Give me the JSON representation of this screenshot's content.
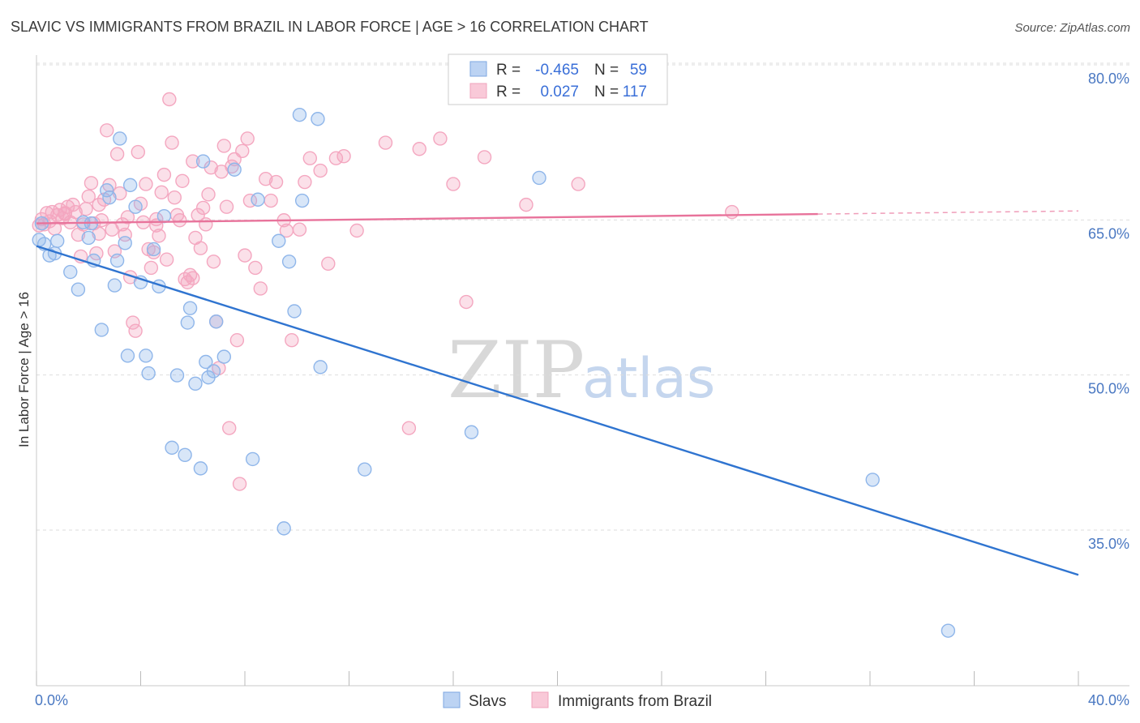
{
  "chart_data": {
    "type": "scatter",
    "title": "SLAVIC VS IMMIGRANTS FROM BRAZIL IN LABOR FORCE | AGE > 16 CORRELATION CHART",
    "source": "Source: ZipAtlas.com",
    "xlabel": "",
    "ylabel": "In Labor Force | Age > 16",
    "xlim": [
      0,
      40
    ],
    "ylim": [
      20,
      83
    ],
    "x_tick_labels": [
      {
        "value": 0,
        "label": "0.0%"
      },
      {
        "value": 40,
        "label": "40.0%"
      }
    ],
    "y_tick_labels": [
      {
        "value": 80,
        "label": "80.0%"
      },
      {
        "value": 65,
        "label": "65.0%"
      },
      {
        "value": 50,
        "label": "50.0%"
      },
      {
        "value": 35,
        "label": "35.0%"
      }
    ],
    "legend": {
      "r_label": "R =",
      "n_label": "N =",
      "entries": [
        {
          "r": "-0.465",
          "n": "59"
        },
        {
          "r": "0.027",
          "n": "117"
        }
      ]
    },
    "watermark": {
      "zip": "ZIP",
      "atlas": "atlas"
    },
    "series": [
      {
        "name": "Slavs",
        "color": "#8fb6ea",
        "line_color": "#2f74d0",
        "trend": {
          "x": [
            0,
            40
          ],
          "y": [
            63.8,
            32.0
          ]
        },
        "points": [
          [
            0.1,
            64.4
          ],
          [
            0.2,
            66.0
          ],
          [
            0.3,
            64.0
          ],
          [
            0.5,
            62.9
          ],
          [
            0.7,
            63.1
          ],
          [
            0.8,
            64.3
          ],
          [
            1.3,
            61.3
          ],
          [
            1.6,
            59.6
          ],
          [
            1.8,
            66.1
          ],
          [
            2.0,
            64.6
          ],
          [
            2.1,
            66.0
          ],
          [
            2.2,
            62.4
          ],
          [
            2.5,
            55.7
          ],
          [
            2.7,
            69.2
          ],
          [
            2.8,
            68.5
          ],
          [
            3.0,
            60.0
          ],
          [
            3.1,
            62.4
          ],
          [
            3.2,
            74.2
          ],
          [
            3.4,
            64.1
          ],
          [
            3.5,
            53.2
          ],
          [
            3.6,
            69.7
          ],
          [
            3.8,
            67.6
          ],
          [
            4.0,
            60.3
          ],
          [
            4.2,
            53.2
          ],
          [
            4.3,
            51.5
          ],
          [
            4.5,
            63.5
          ],
          [
            4.7,
            59.9
          ],
          [
            4.9,
            66.7
          ],
          [
            5.2,
            44.3
          ],
          [
            5.4,
            51.3
          ],
          [
            5.7,
            43.6
          ],
          [
            5.8,
            56.4
          ],
          [
            5.9,
            57.8
          ],
          [
            6.1,
            50.5
          ],
          [
            6.3,
            42.3
          ],
          [
            6.4,
            72.0
          ],
          [
            6.5,
            52.6
          ],
          [
            6.6,
            51.1
          ],
          [
            6.8,
            51.7
          ],
          [
            6.9,
            56.5
          ],
          [
            7.2,
            53.1
          ],
          [
            7.6,
            71.2
          ],
          [
            8.3,
            43.2
          ],
          [
            8.5,
            68.3
          ],
          [
            9.3,
            64.3
          ],
          [
            9.5,
            36.5
          ],
          [
            9.7,
            62.3
          ],
          [
            9.9,
            57.5
          ],
          [
            10.1,
            76.5
          ],
          [
            10.2,
            68.2
          ],
          [
            10.8,
            76.1
          ],
          [
            10.9,
            52.1
          ],
          [
            12.6,
            42.2
          ],
          [
            16.7,
            45.8
          ],
          [
            19.3,
            70.4
          ],
          [
            32.1,
            41.2
          ],
          [
            35.0,
            26.6
          ]
        ]
      },
      {
        "name": "Immigrants from Brazil",
        "color": "#f4a7c0",
        "line_color": "#e8739b",
        "trend": {
          "x": [
            0,
            30
          ],
          "y": [
            66.0,
            66.9
          ]
        },
        "trend_dashed": {
          "x": [
            30,
            40
          ],
          "y": [
            66.9,
            67.2
          ]
        },
        "points": [
          [
            0.1,
            65.8
          ],
          [
            0.2,
            66.4
          ],
          [
            0.3,
            65.9
          ],
          [
            0.4,
            67.0
          ],
          [
            0.5,
            66.2
          ],
          [
            0.6,
            67.1
          ],
          [
            0.7,
            65.5
          ],
          [
            0.8,
            66.8
          ],
          [
            0.9,
            67.3
          ],
          [
            1.0,
            66.5
          ],
          [
            1.1,
            66.9
          ],
          [
            1.2,
            67.6
          ],
          [
            1.3,
            66.1
          ],
          [
            1.4,
            67.8
          ],
          [
            1.5,
            67.1
          ],
          [
            1.6,
            64.9
          ],
          [
            1.7,
            62.8
          ],
          [
            1.8,
            65.9
          ],
          [
            1.9,
            67.4
          ],
          [
            2.0,
            68.6
          ],
          [
            2.1,
            69.9
          ],
          [
            2.2,
            66.0
          ],
          [
            2.3,
            63.1
          ],
          [
            2.4,
            67.8
          ],
          [
            2.5,
            66.3
          ],
          [
            2.6,
            68.3
          ],
          [
            2.7,
            75.0
          ],
          [
            2.8,
            69.7
          ],
          [
            2.9,
            65.4
          ],
          [
            3.0,
            63.3
          ],
          [
            3.1,
            72.7
          ],
          [
            3.2,
            68.9
          ],
          [
            3.3,
            65.9
          ],
          [
            3.4,
            64.9
          ],
          [
            3.5,
            66.6
          ],
          [
            3.6,
            60.8
          ],
          [
            3.7,
            56.4
          ],
          [
            3.8,
            55.6
          ],
          [
            3.9,
            72.9
          ],
          [
            4.0,
            67.9
          ],
          [
            4.1,
            66.1
          ],
          [
            4.2,
            69.8
          ],
          [
            4.3,
            63.5
          ],
          [
            4.4,
            61.7
          ],
          [
            4.5,
            63.2
          ],
          [
            4.6,
            65.8
          ],
          [
            4.7,
            64.8
          ],
          [
            4.8,
            69.0
          ],
          [
            4.9,
            70.7
          ],
          [
            5.0,
            62.5
          ],
          [
            5.1,
            78.0
          ],
          [
            5.2,
            73.8
          ],
          [
            5.3,
            68.5
          ],
          [
            5.4,
            66.8
          ],
          [
            5.5,
            66.3
          ],
          [
            5.6,
            70.1
          ],
          [
            5.7,
            60.6
          ],
          [
            5.8,
            60.3
          ],
          [
            5.9,
            61.0
          ],
          [
            6.0,
            72.0
          ],
          [
            6.1,
            64.6
          ],
          [
            6.2,
            66.8
          ],
          [
            6.3,
            63.6
          ],
          [
            6.4,
            67.5
          ],
          [
            6.5,
            65.9
          ],
          [
            6.6,
            68.8
          ],
          [
            6.7,
            71.4
          ],
          [
            6.8,
            62.3
          ],
          [
            6.9,
            56.5
          ],
          [
            7.0,
            52.0
          ],
          [
            7.1,
            71.0
          ],
          [
            7.2,
            73.5
          ],
          [
            7.3,
            67.6
          ],
          [
            7.4,
            46.2
          ],
          [
            7.5,
            71.5
          ],
          [
            7.6,
            72.2
          ],
          [
            7.7,
            54.7
          ],
          [
            7.8,
            40.8
          ],
          [
            7.9,
            73.0
          ],
          [
            8.0,
            62.9
          ],
          [
            8.1,
            74.2
          ],
          [
            8.2,
            68.2
          ],
          [
            8.4,
            61.7
          ],
          [
            8.6,
            59.7
          ],
          [
            8.8,
            70.3
          ],
          [
            9.0,
            68.2
          ],
          [
            9.2,
            70.0
          ],
          [
            9.5,
            66.3
          ],
          [
            9.8,
            54.7
          ],
          [
            10.1,
            65.4
          ],
          [
            10.3,
            70.0
          ],
          [
            10.5,
            72.3
          ],
          [
            10.9,
            71.1
          ],
          [
            11.2,
            62.1
          ],
          [
            11.5,
            72.3
          ],
          [
            11.8,
            72.5
          ],
          [
            12.3,
            65.3
          ],
          [
            13.4,
            73.8
          ],
          [
            14.3,
            46.2
          ],
          [
            14.7,
            73.2
          ],
          [
            15.5,
            74.2
          ],
          [
            16.0,
            69.8
          ],
          [
            16.5,
            58.4
          ],
          [
            17.2,
            72.4
          ],
          [
            18.8,
            67.8
          ],
          [
            20.8,
            69.8
          ],
          [
            26.7,
            67.1
          ],
          [
            1.1,
            67.0
          ],
          [
            2.4,
            65.0
          ],
          [
            4.6,
            66.4
          ],
          [
            6.0,
            60.7
          ],
          [
            9.6,
            65.3
          ]
        ]
      }
    ]
  }
}
